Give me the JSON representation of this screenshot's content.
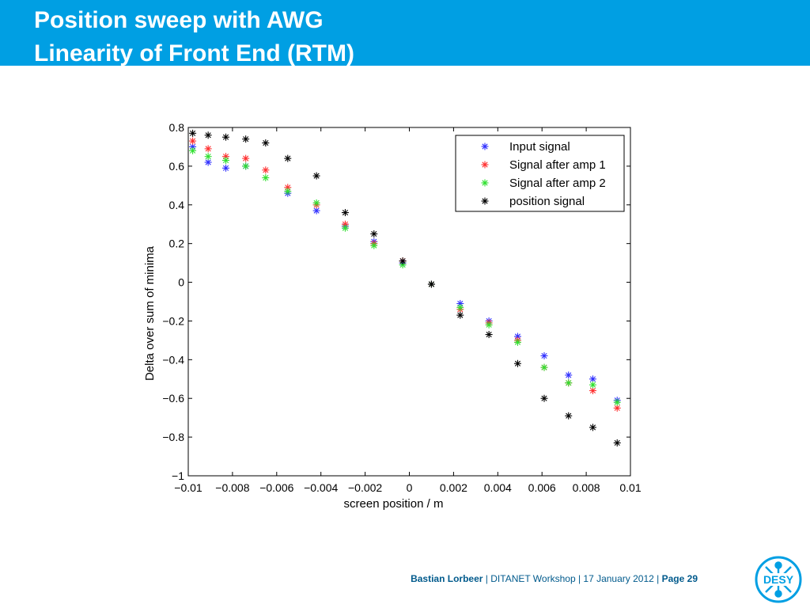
{
  "slide": {
    "title_line1": "Position sweep with AWG",
    "title_line2": "Linearity of Front End (RTM)",
    "header_color": "#009fe3"
  },
  "footer": {
    "author": "Bastian Lorbeer",
    "sep1": "|",
    "event": "DITANET Workshop | 17 January 2012",
    "sep2": "|",
    "page": "Page 29"
  },
  "logo": {
    "text": "DESY",
    "icon": "desy-logo-icon"
  },
  "chart_data": {
    "type": "scatter",
    "marker": "asterisk",
    "xlabel": "screen position / m",
    "ylabel": "Delta over sum of minima",
    "xlim": [
      -0.01,
      0.01
    ],
    "ylim": [
      -1,
      0.8
    ],
    "xticks": [
      "−0.01",
      "−0.008",
      "−0.006",
      "−0.004",
      "−0.002",
      "0",
      "0.002",
      "0.004",
      "0.006",
      "0.008",
      "0.01"
    ],
    "yticks": [
      "0.8",
      "0.6",
      "0.4",
      "0.2",
      "0",
      "−0.2",
      "−0.4",
      "−0.6",
      "−0.8",
      "−1"
    ],
    "legend_position": "top-right",
    "series": [
      {
        "name": "Input signal",
        "color": "#3030ff",
        "x": [
          -0.0098,
          -0.0091,
          -0.0083,
          -0.0074,
          -0.0055,
          -0.0042,
          -0.0029,
          -0.0016,
          -0.0003,
          0.001,
          0.0023,
          0.0036,
          0.0049,
          0.0061,
          0.0072,
          0.0083,
          0.0094
        ],
        "y": [
          0.7,
          0.62,
          0.59,
          0.6,
          0.46,
          0.37,
          0.29,
          0.21,
          0.1,
          -0.01,
          -0.11,
          -0.2,
          -0.28,
          -0.38,
          -0.48,
          -0.5,
          -0.61
        ]
      },
      {
        "name": "Signal after amp 1",
        "color": "#ff3030",
        "x": [
          -0.0098,
          -0.0091,
          -0.0083,
          -0.0074,
          -0.0065,
          -0.0055,
          -0.0042,
          -0.0029,
          -0.0016,
          -0.0003,
          0.001,
          0.0023,
          0.0036,
          0.0049,
          0.0061,
          0.0072,
          0.0083,
          0.0094
        ],
        "y": [
          0.73,
          0.69,
          0.65,
          0.64,
          0.58,
          0.49,
          0.4,
          0.3,
          0.2,
          0.11,
          -0.01,
          -0.14,
          -0.21,
          -0.3,
          -0.44,
          -0.52,
          -0.56,
          -0.65
        ]
      },
      {
        "name": "Signal after amp 2",
        "color": "#30e030",
        "x": [
          -0.0098,
          -0.0091,
          -0.0083,
          -0.0074,
          -0.0065,
          -0.0055,
          -0.0042,
          -0.0029,
          -0.0016,
          -0.0003,
          0.001,
          0.0023,
          0.0036,
          0.0049,
          0.0061,
          0.0072,
          0.0083,
          0.0094
        ],
        "y": [
          0.68,
          0.65,
          0.63,
          0.6,
          0.54,
          0.47,
          0.41,
          0.28,
          0.19,
          0.09,
          -0.01,
          -0.13,
          -0.22,
          -0.31,
          -0.44,
          -0.52,
          -0.53,
          -0.62
        ]
      },
      {
        "name": "position signal",
        "color": "#000000",
        "x": [
          -0.0098,
          -0.0091,
          -0.0083,
          -0.0074,
          -0.0065,
          -0.0055,
          -0.0042,
          -0.0029,
          -0.0016,
          -0.0003,
          0.001,
          0.0023,
          0.0036,
          0.0049,
          0.0061,
          0.0072,
          0.0083,
          0.0094
        ],
        "y": [
          0.77,
          0.76,
          0.75,
          0.74,
          0.72,
          0.64,
          0.55,
          0.36,
          0.25,
          0.11,
          -0.01,
          -0.17,
          -0.27,
          -0.42,
          -0.6,
          -0.69,
          -0.75,
          -0.83
        ]
      }
    ]
  }
}
